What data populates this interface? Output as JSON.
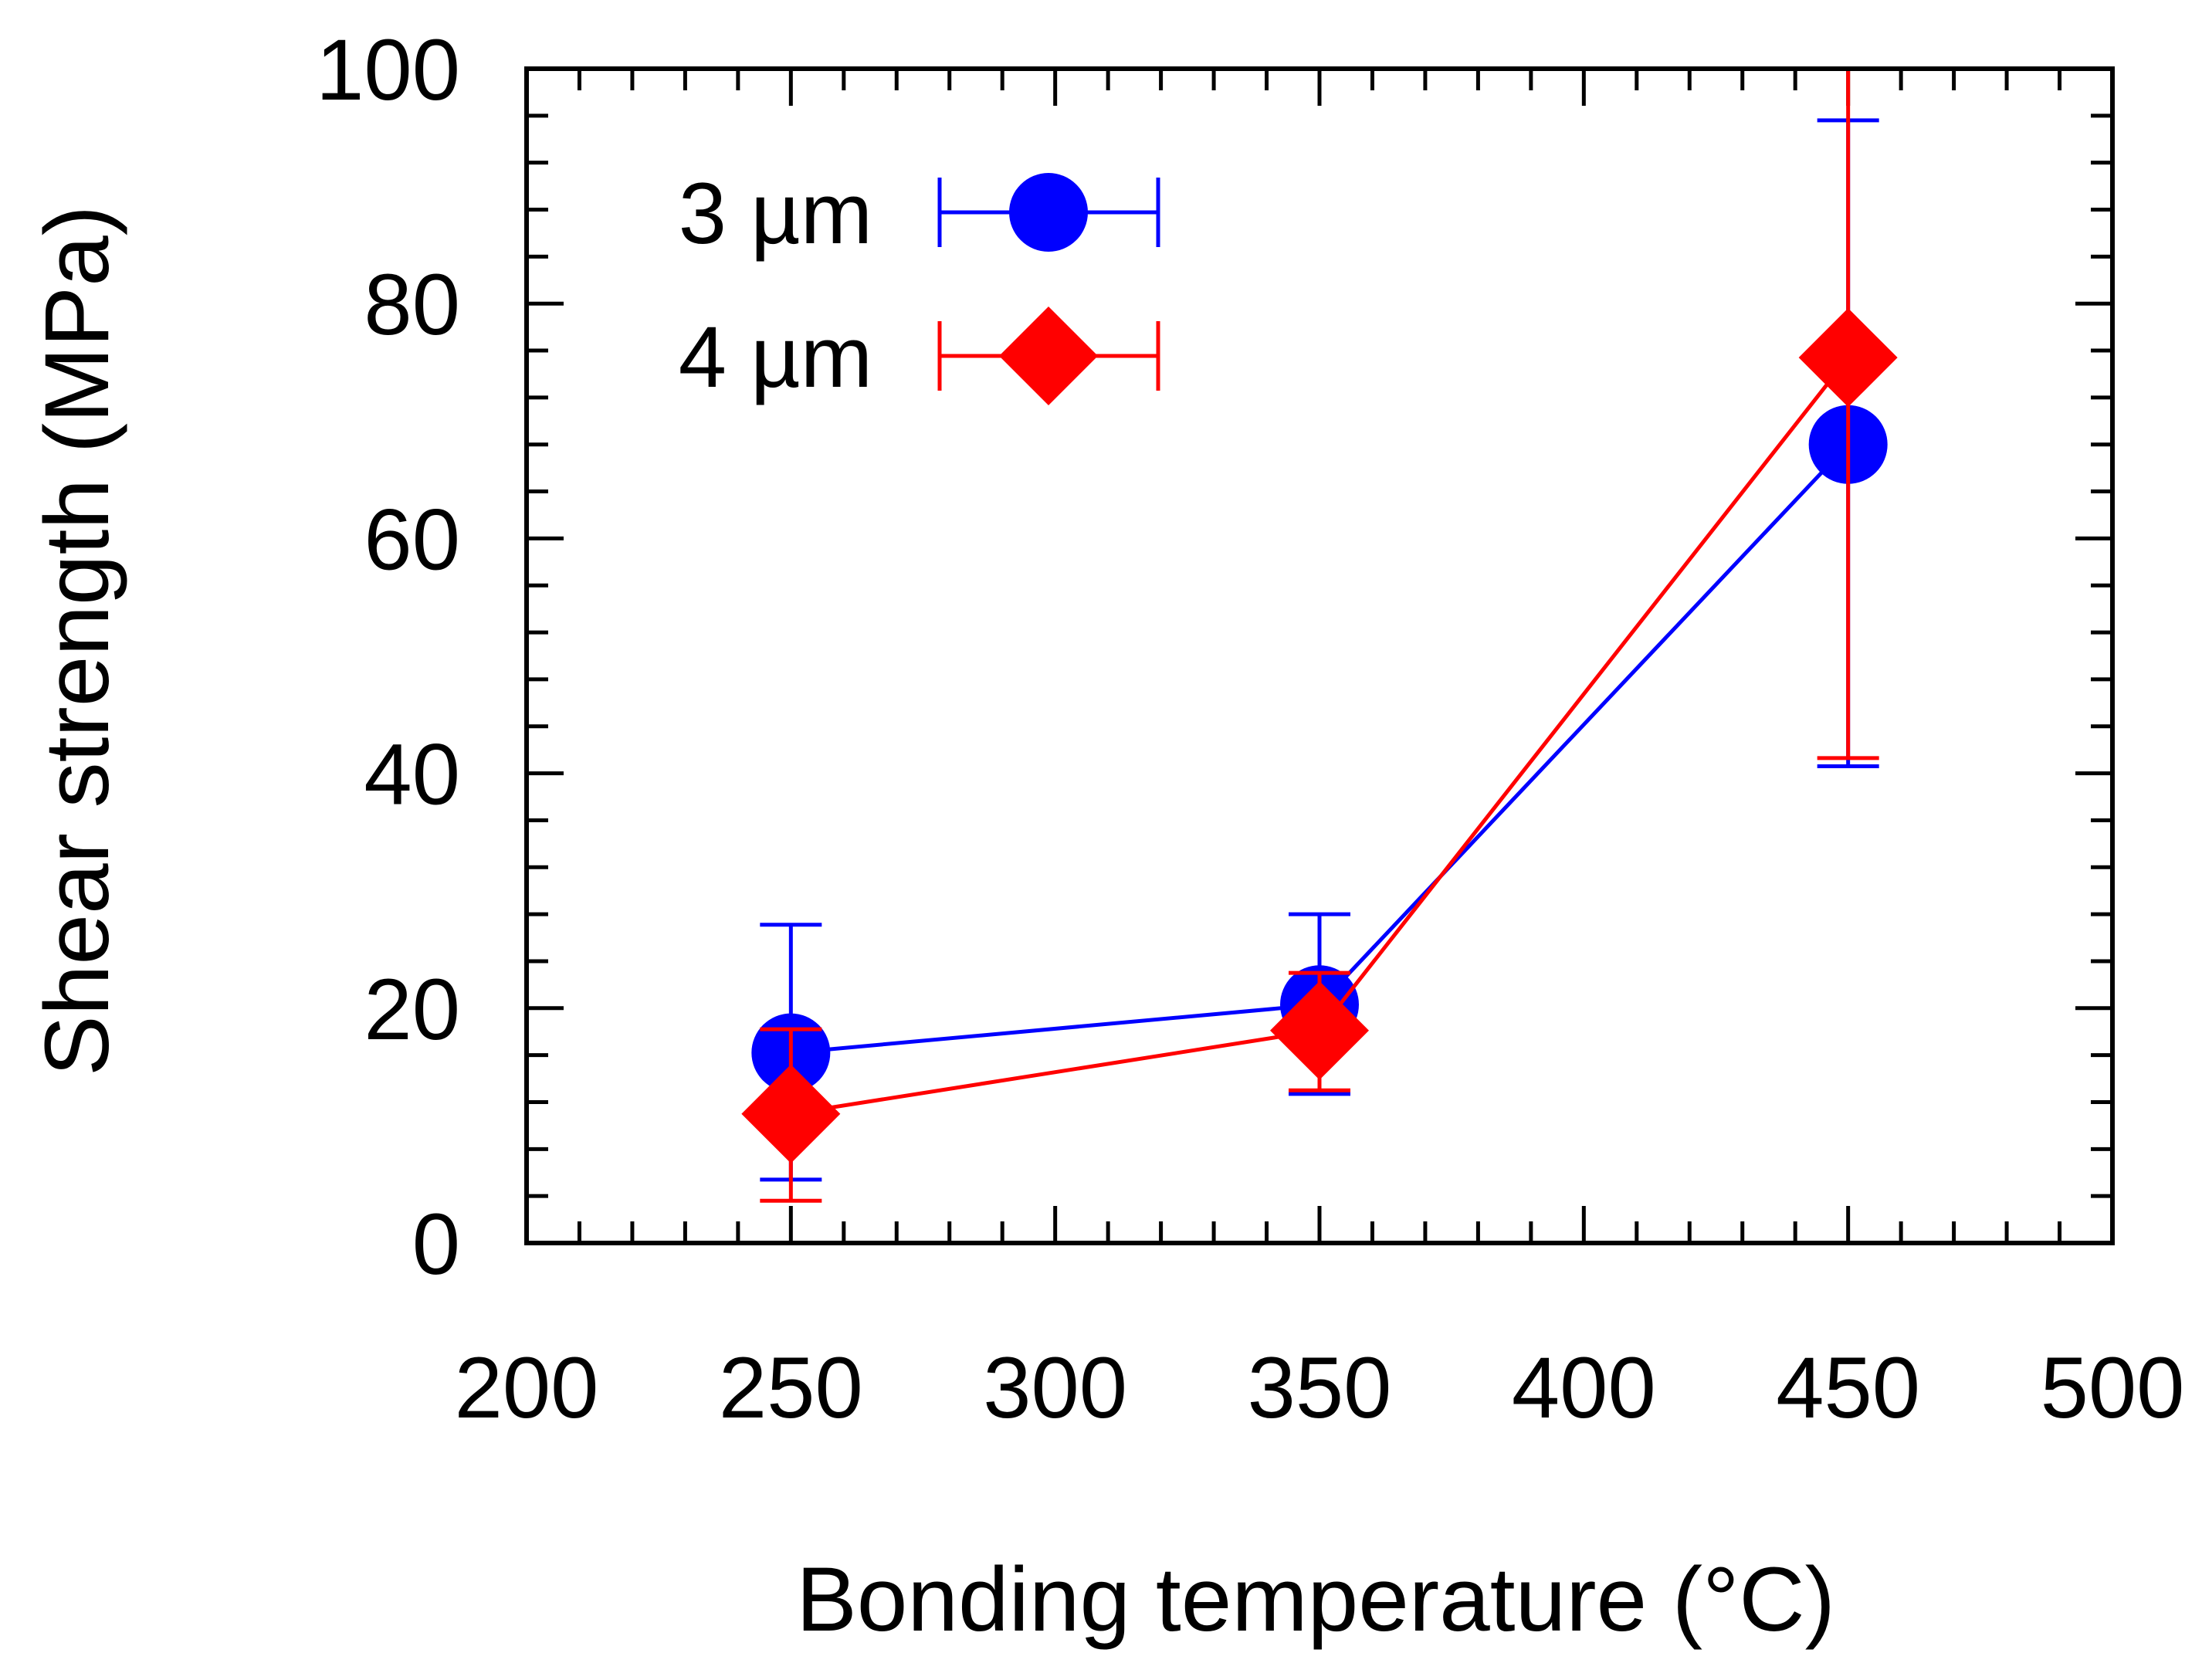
{
  "chart_data": {
    "type": "scatter",
    "title": "",
    "xlabel": "Bonding temperature (°C)",
    "ylabel": "Shear strength (MPa)",
    "xlim": [
      200,
      500
    ],
    "ylim": [
      0,
      100
    ],
    "xticks": [
      200,
      250,
      300,
      350,
      400,
      450,
      500
    ],
    "xtick_labels": [
      "200",
      "250",
      "300",
      "350",
      "400",
      "450",
      "500"
    ],
    "yticks": [
      0,
      20,
      40,
      60,
      80,
      100
    ],
    "ytick_labels": [
      "0",
      "20",
      "40",
      "60",
      "80",
      "100"
    ],
    "x_minor_step": 10,
    "y_minor_step": 4,
    "grid": false,
    "legend_position": "top-left",
    "series": [
      {
        "name": "3 µm",
        "color": "#0000ff",
        "marker": "circle",
        "x": [
          250,
          350,
          450
        ],
        "y": [
          16.2,
          20.3,
          68.0
        ],
        "y_err_low": [
          5.4,
          12.7,
          40.6
        ],
        "y_err_high": [
          27.1,
          28.0,
          95.6
        ],
        "connected": true
      },
      {
        "name": "4 µm",
        "color": "#ff0000",
        "marker": "diamond",
        "x": [
          250,
          350,
          450
        ],
        "y": [
          11.0,
          18.1,
          75.4
        ],
        "y_err_low": [
          3.6,
          13.0,
          41.3
        ],
        "y_err_high": [
          18.2,
          23.0,
          100.0
        ],
        "connected": true
      }
    ]
  }
}
